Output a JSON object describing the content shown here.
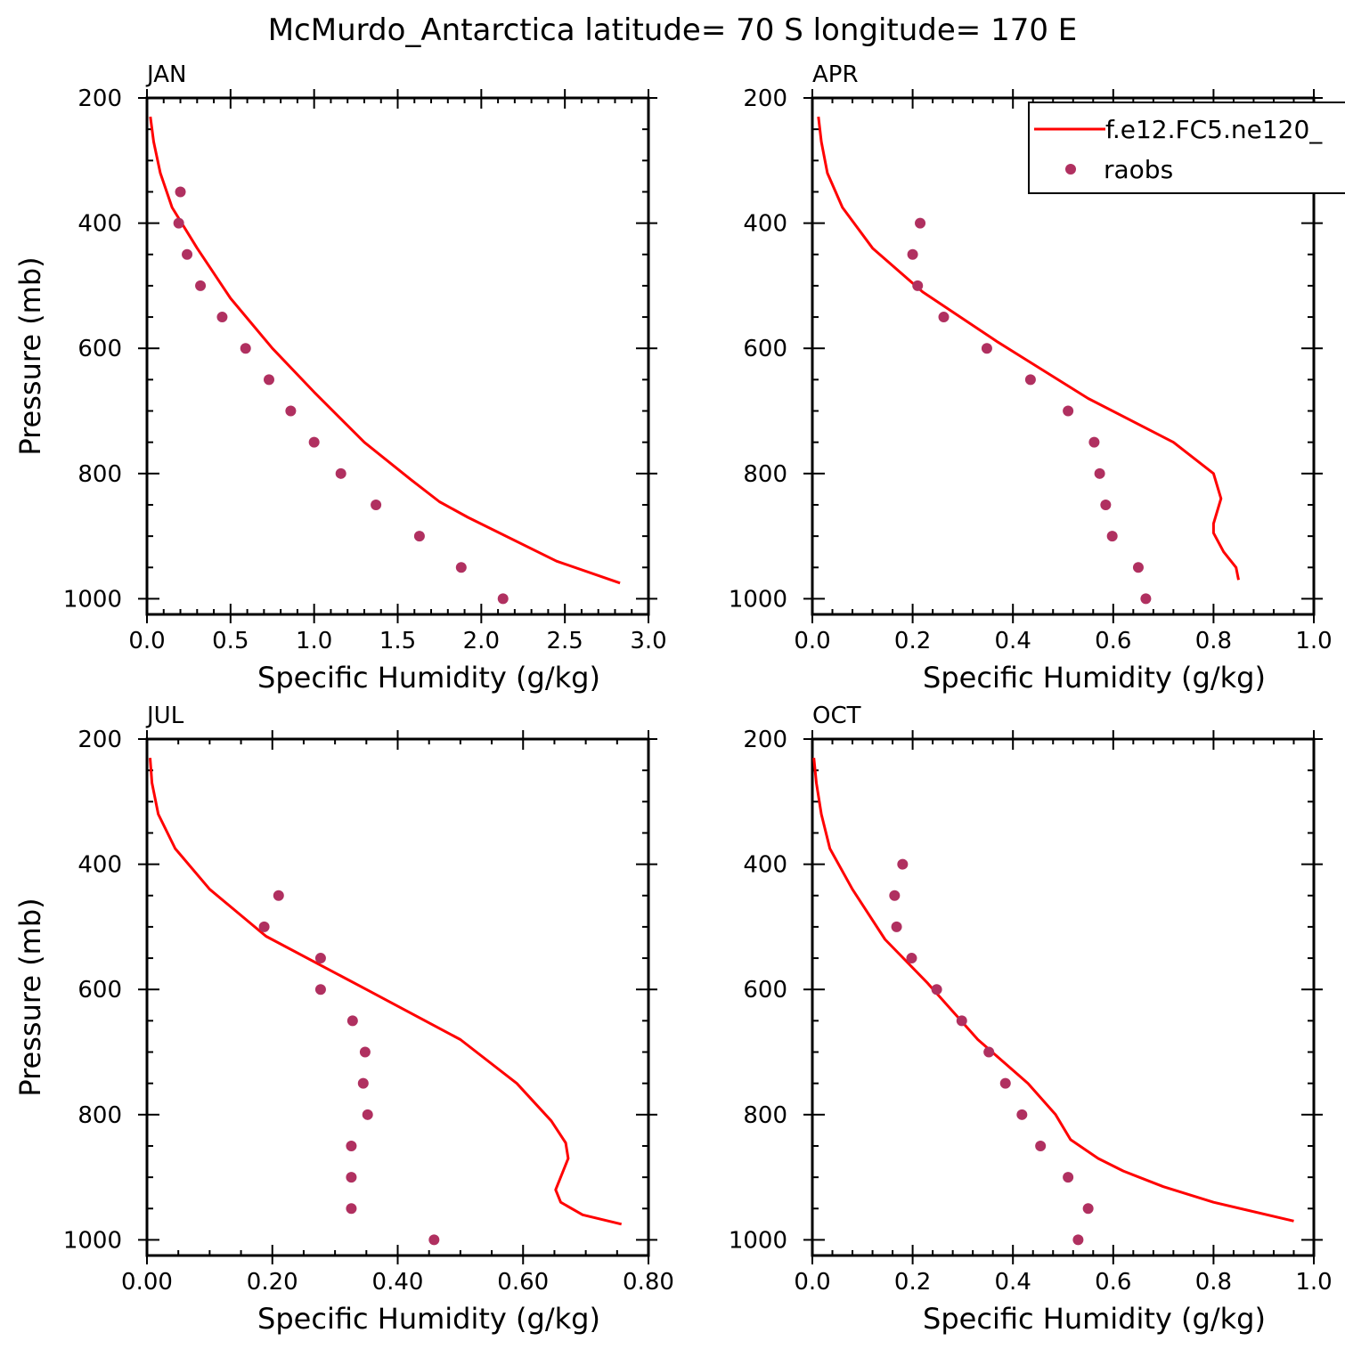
{
  "title": "McMurdo_Antarctica  latitude= 70 S longitude= 170 E",
  "colors": {
    "model_line": "#ff0000",
    "obs_marker": "#b03060",
    "axis": "#000000"
  },
  "legend": {
    "entries": [
      {
        "label": "f.e12.FC5.ne120_",
        "style": "line",
        "color": "#ff0000"
      },
      {
        "label": "raobs",
        "style": "marker",
        "color": "#b03060"
      }
    ],
    "placement": "top-right of APR panel"
  },
  "chart_data": [
    {
      "panel": "JAN",
      "type": "line",
      "xlabel": "Specific Humidity (g/kg)",
      "ylabel": "Pressure (mb)",
      "xlim": [
        0,
        3.0
      ],
      "ylim": [
        1025,
        200
      ],
      "xticks": [
        "0.0",
        "0.5",
        "1.0",
        "1.5",
        "2.0",
        "2.5",
        "3.0"
      ],
      "xtick_values": [
        0,
        0.5,
        1.0,
        1.5,
        2.0,
        2.5,
        3.0
      ],
      "yticks": [
        "200",
        "400",
        "600",
        "800",
        "1000"
      ],
      "ytick_values": [
        200,
        400,
        600,
        800,
        1000
      ],
      "series": [
        {
          "name": "f.e12.FC5.ne120_",
          "style": "line",
          "x": [
            0.02,
            0.04,
            0.08,
            0.15,
            0.3,
            0.5,
            0.75,
            1.0,
            1.3,
            1.58,
            1.75,
            1.92,
            2.45,
            2.83
          ],
          "y": [
            230,
            270,
            320,
            375,
            440,
            520,
            600,
            670,
            750,
            810,
            845,
            870,
            940,
            975
          ]
        },
        {
          "name": "raobs",
          "style": "marker",
          "x": [
            0.2,
            0.19,
            0.24,
            0.32,
            0.45,
            0.59,
            0.73,
            0.86,
            1.0,
            1.16,
            1.37,
            1.63,
            1.88,
            2.13
          ],
          "y": [
            350,
            400,
            450,
            500,
            550,
            600,
            650,
            700,
            750,
            800,
            850,
            900,
            950,
            1000
          ]
        }
      ]
    },
    {
      "panel": "APR",
      "type": "line",
      "xlabel": "Specific Humidity (g/kg)",
      "ylabel": "",
      "xlim": [
        0,
        1.0
      ],
      "ylim": [
        1025,
        200
      ],
      "xticks": [
        "0.0",
        "0.2",
        "0.4",
        "0.6",
        "0.8",
        "1.0"
      ],
      "xtick_values": [
        0,
        0.2,
        0.4,
        0.6,
        0.8,
        1.0
      ],
      "yticks": [
        "200",
        "400",
        "600",
        "800",
        "1000"
      ],
      "ytick_values": [
        200,
        400,
        600,
        800,
        1000
      ],
      "series": [
        {
          "name": "f.e12.FC5.ne120_",
          "style": "line",
          "x": [
            0.012,
            0.018,
            0.03,
            0.06,
            0.12,
            0.22,
            0.37,
            0.55,
            0.72,
            0.8,
            0.815,
            0.8,
            0.8,
            0.82,
            0.845,
            0.85
          ],
          "y": [
            230,
            270,
            320,
            375,
            440,
            510,
            590,
            680,
            750,
            800,
            840,
            880,
            895,
            925,
            950,
            970
          ]
        },
        {
          "name": "raobs",
          "style": "marker",
          "x": [
            0.215,
            0.2,
            0.21,
            0.262,
            0.348,
            0.435,
            0.51,
            0.562,
            0.573,
            0.585,
            0.598,
            0.65,
            0.665
          ],
          "y": [
            400,
            450,
            500,
            550,
            600,
            650,
            700,
            750,
            800,
            850,
            900,
            950,
            1000
          ]
        }
      ]
    },
    {
      "panel": "JUL",
      "type": "line",
      "xlabel": "Specific Humidity (g/kg)",
      "ylabel": "Pressure (mb)",
      "xlim": [
        0,
        0.8
      ],
      "ylim": [
        1025,
        200
      ],
      "xticks": [
        "0.00",
        "0.20",
        "0.40",
        "0.60",
        "0.80"
      ],
      "xtick_values": [
        0,
        0.2,
        0.4,
        0.6,
        0.8
      ],
      "yticks": [
        "200",
        "400",
        "600",
        "800",
        "1000"
      ],
      "ytick_values": [
        200,
        400,
        600,
        800,
        1000
      ],
      "series": [
        {
          "name": "f.e12.FC5.ne120_",
          "style": "line",
          "x": [
            0.005,
            0.008,
            0.018,
            0.045,
            0.1,
            0.19,
            0.35,
            0.5,
            0.59,
            0.645,
            0.668,
            0.672,
            0.652,
            0.66,
            0.695,
            0.757
          ],
          "y": [
            230,
            270,
            320,
            375,
            440,
            515,
            600,
            680,
            750,
            810,
            845,
            870,
            920,
            940,
            960,
            975
          ]
        },
        {
          "name": "raobs",
          "style": "marker",
          "x": [
            0.21,
            0.187,
            0.277,
            0.277,
            0.328,
            0.348,
            0.345,
            0.352,
            0.326,
            0.326,
            0.326,
            0.458
          ],
          "y": [
            450,
            500,
            550,
            600,
            650,
            700,
            750,
            800,
            850,
            900,
            950,
            1000
          ]
        }
      ]
    },
    {
      "panel": "OCT",
      "type": "line",
      "xlabel": "Specific Humidity (g/kg)",
      "ylabel": "",
      "xlim": [
        0,
        1.0
      ],
      "ylim": [
        1025,
        200
      ],
      "xticks": [
        "0.0",
        "0.2",
        "0.4",
        "0.6",
        "0.8",
        "1.0"
      ],
      "xtick_values": [
        0,
        0.2,
        0.4,
        0.6,
        0.8,
        1.0
      ],
      "yticks": [
        "200",
        "400",
        "600",
        "800",
        "1000"
      ],
      "ytick_values": [
        200,
        400,
        600,
        800,
        1000
      ],
      "series": [
        {
          "name": "f.e12.FC5.ne120_",
          "style": "line",
          "x": [
            0.003,
            0.008,
            0.018,
            0.035,
            0.08,
            0.145,
            0.23,
            0.33,
            0.43,
            0.485,
            0.515,
            0.57,
            0.62,
            0.7,
            0.8,
            0.96
          ],
          "y": [
            230,
            270,
            320,
            375,
            440,
            520,
            590,
            680,
            750,
            800,
            840,
            870,
            890,
            915,
            940,
            970
          ]
        },
        {
          "name": "raobs",
          "style": "marker",
          "x": [
            0.18,
            0.164,
            0.168,
            0.198,
            0.248,
            0.298,
            0.352,
            0.385,
            0.418,
            0.455,
            0.51,
            0.55,
            0.53
          ],
          "y": [
            400,
            450,
            500,
            550,
            600,
            650,
            700,
            750,
            800,
            850,
            900,
            950,
            1000
          ]
        }
      ]
    }
  ]
}
